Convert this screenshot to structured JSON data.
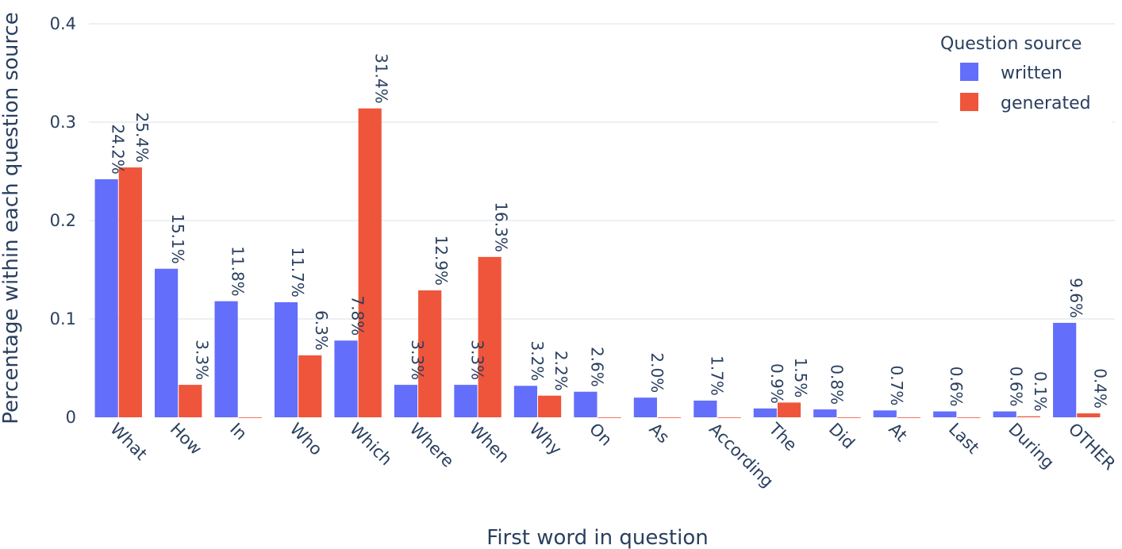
{
  "chart_data": {
    "type": "bar",
    "categories": [
      "What",
      "How",
      "In",
      "Who",
      "Which",
      "Where",
      "When",
      "Why",
      "On",
      "As",
      "According",
      "The",
      "Did",
      "At",
      "Last",
      "During",
      "OTHER"
    ],
    "series": [
      {
        "name": "written",
        "color": "#636efa",
        "values": [
          0.242,
          0.151,
          0.118,
          0.117,
          0.078,
          0.033,
          0.033,
          0.032,
          0.026,
          0.02,
          0.017,
          0.009,
          0.008,
          0.007,
          0.006,
          0.006,
          0.096
        ],
        "labels": [
          "24.2%",
          "15.1%",
          "11.8%",
          "11.7%",
          "7.8%",
          "3.3%",
          "3.3%",
          "3.2%",
          "2.6%",
          "2.0%",
          "1.7%",
          "0.9%",
          "0.8%",
          "0.7%",
          "0.6%",
          "0.6%",
          "9.6%"
        ]
      },
      {
        "name": "generated",
        "color": "#ef553b",
        "values": [
          0.254,
          0.033,
          0.0,
          0.063,
          0.314,
          0.129,
          0.163,
          0.022,
          0.0,
          0.0,
          0.0,
          0.015,
          0.0,
          0.0,
          0.0,
          0.001,
          0.004
        ],
        "labels": [
          "25.4%",
          "3.3%",
          "",
          "6.3%",
          "31.4%",
          "12.9%",
          "16.3%",
          "2.2%",
          "",
          "",
          "",
          "1.5%",
          "",
          "",
          "",
          "0.1%",
          "0.4%"
        ]
      }
    ],
    "xlabel": "First word in question",
    "ylabel": "Percentage within each question source",
    "ylim": [
      0,
      0.4
    ],
    "yticks": [
      "0",
      "0.1",
      "0.2",
      "0.3",
      "0.4"
    ],
    "legend_title": "Question source",
    "legend_position": "top-right",
    "grid": true
  }
}
